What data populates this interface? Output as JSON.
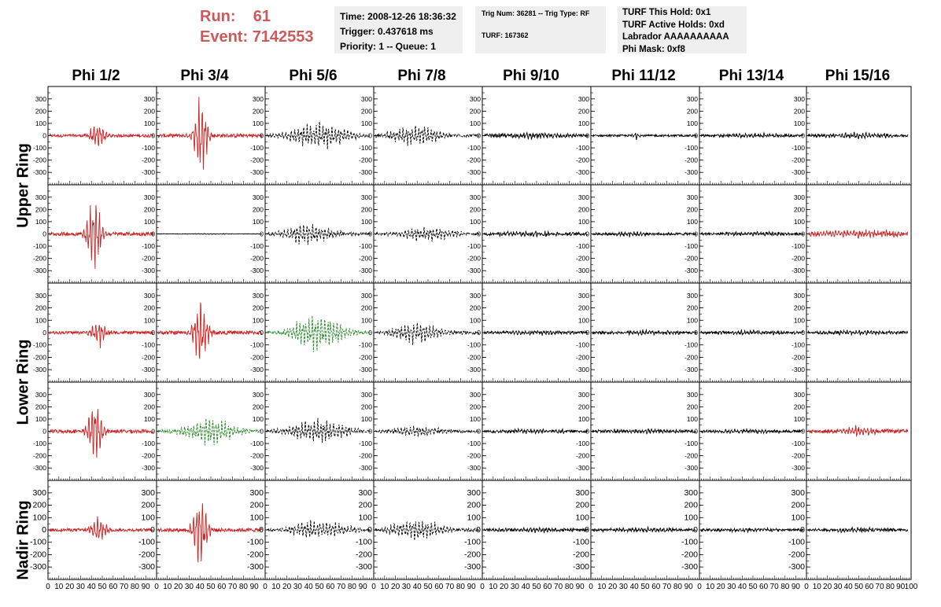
{
  "run_info": {
    "run_label": "Run:",
    "run_value": "61",
    "event_label": "Event:",
    "event_value": "7142553"
  },
  "info_box_time": {
    "time": "Time: 2008-12-26 18:36:32",
    "trigger": "Trigger: 0.437618 ms",
    "priority": "Priority: 1 -- Queue: 1"
  },
  "info_box_trig": {
    "trig": "Trig Num: 36281 -- Trig Type: RF",
    "turf": "TURF: 167362"
  },
  "info_box_turf": {
    "hold": "TURF This Hold: 0x1",
    "active": "TURF Active Holds: 0xd",
    "labrador": "Labrador AAAAAAAAAA",
    "phimask": "Phi Mask: 0xf8"
  },
  "colors": {
    "header": "#cc5a5a",
    "red": "#cc2222",
    "green": "#228822",
    "black": "#000000"
  },
  "chart_data": {
    "type": "line",
    "columns": [
      "Phi 1/2",
      "Phi 3/4",
      "Phi 5/6",
      "Phi 7/8",
      "Phi 9/10",
      "Phi 11/12",
      "Phi 13/14",
      "Phi 15/16"
    ],
    "rings": [
      "Upper Ring",
      "Lower Ring",
      "Nadir Ring"
    ],
    "rows": 5,
    "ylim": [
      -350,
      350
    ],
    "yticks": [
      300,
      200,
      100,
      0,
      -100,
      -200,
      -300
    ],
    "xlim": [
      0,
      100
    ],
    "xticks": [
      0,
      10,
      20,
      30,
      40,
      50,
      60,
      70,
      80,
      90,
      100
    ],
    "xticklabels_last": "100",
    "panels": [
      [
        {
          "color": "red",
          "style": "solid",
          "peak": 100,
          "center": 47,
          "width": 8,
          "noise": 12
        },
        {
          "color": "red",
          "style": "solid",
          "peak": 330,
          "center": 41,
          "width": 6,
          "noise": 15
        },
        {
          "color": "black",
          "style": "dashed",
          "peak": 90,
          "center": 50,
          "width": 30,
          "noise": 10
        },
        {
          "color": "black",
          "style": "dashed",
          "peak": 80,
          "center": 40,
          "width": 25,
          "noise": 12
        },
        {
          "color": "black",
          "style": "solid",
          "peak": 20,
          "center": 50,
          "width": 40,
          "noise": 12
        },
        {
          "color": "black",
          "style": "solid",
          "peak": 35,
          "center": 42,
          "width": 3,
          "noise": 8
        },
        {
          "color": "black",
          "style": "solid",
          "peak": 15,
          "center": 50,
          "width": 40,
          "noise": 10
        },
        {
          "color": "black",
          "style": "solid",
          "peak": 20,
          "center": 50,
          "width": 40,
          "noise": 10
        }
      ],
      [
        {
          "color": "red",
          "style": "solid",
          "peak": 310,
          "center": 43,
          "width": 7,
          "noise": 15
        },
        {
          "color": "black",
          "style": "solid",
          "peak": 3,
          "center": 50,
          "width": 40,
          "noise": 2
        },
        {
          "color": "black",
          "style": "dashed",
          "peak": 80,
          "center": 40,
          "width": 25,
          "noise": 12
        },
        {
          "color": "black",
          "style": "dashed",
          "peak": 50,
          "center": 50,
          "width": 30,
          "noise": 10
        },
        {
          "color": "black",
          "style": "solid",
          "peak": 20,
          "center": 45,
          "width": 30,
          "noise": 12
        },
        {
          "color": "black",
          "style": "solid",
          "peak": 20,
          "center": 40,
          "width": 20,
          "noise": 10
        },
        {
          "color": "black",
          "style": "solid",
          "peak": 12,
          "center": 50,
          "width": 40,
          "noise": 10
        },
        {
          "color": "red",
          "style": "solid",
          "peak": 30,
          "center": 50,
          "width": 40,
          "noise": 15
        }
      ],
      [
        {
          "color": "red",
          "style": "solid",
          "peak": 100,
          "center": 47,
          "width": 8,
          "noise": 12
        },
        {
          "color": "red",
          "style": "solid",
          "peak": 280,
          "center": 41,
          "width": 7,
          "noise": 15
        },
        {
          "color": "green",
          "style": "dashed",
          "peak": 140,
          "center": 50,
          "width": 25,
          "noise": 10
        },
        {
          "color": "black",
          "style": "dashed",
          "peak": 80,
          "center": 40,
          "width": 25,
          "noise": 12
        },
        {
          "color": "black",
          "style": "solid",
          "peak": 15,
          "center": 50,
          "width": 40,
          "noise": 10
        },
        {
          "color": "black",
          "style": "solid",
          "peak": 15,
          "center": 50,
          "width": 40,
          "noise": 10
        },
        {
          "color": "black",
          "style": "solid",
          "peak": 12,
          "center": 50,
          "width": 40,
          "noise": 10
        },
        {
          "color": "black",
          "style": "solid",
          "peak": 15,
          "center": 50,
          "width": 40,
          "noise": 10
        }
      ],
      [
        {
          "color": "red",
          "style": "solid",
          "peak": 260,
          "center": 44,
          "width": 7,
          "noise": 15
        },
        {
          "color": "green",
          "style": "dashed",
          "peak": 100,
          "center": 50,
          "width": 25,
          "noise": 12
        },
        {
          "color": "black",
          "style": "dashed",
          "peak": 90,
          "center": 50,
          "width": 30,
          "noise": 10
        },
        {
          "color": "black",
          "style": "dashed",
          "peak": 40,
          "center": 40,
          "width": 25,
          "noise": 12
        },
        {
          "color": "black",
          "style": "solid",
          "peak": 15,
          "center": 50,
          "width": 40,
          "noise": 10
        },
        {
          "color": "black",
          "style": "solid",
          "peak": 15,
          "center": 50,
          "width": 40,
          "noise": 10
        },
        {
          "color": "black",
          "style": "solid",
          "peak": 12,
          "center": 50,
          "width": 40,
          "noise": 10
        },
        {
          "color": "red",
          "style": "solid",
          "peak": 40,
          "center": 50,
          "width": 20,
          "noise": 15
        }
      ],
      [
        {
          "color": "red",
          "style": "solid",
          "peak": 110,
          "center": 47,
          "width": 8,
          "noise": 12
        },
        {
          "color": "red",
          "style": "solid",
          "peak": 280,
          "center": 41,
          "width": 7,
          "noise": 15
        },
        {
          "color": "black",
          "style": "dashed",
          "peak": 70,
          "center": 50,
          "width": 30,
          "noise": 10
        },
        {
          "color": "black",
          "style": "dashed",
          "peak": 80,
          "center": 40,
          "width": 25,
          "noise": 12
        },
        {
          "color": "black",
          "style": "solid",
          "peak": 15,
          "center": 50,
          "width": 40,
          "noise": 10
        },
        {
          "color": "black",
          "style": "solid",
          "peak": 15,
          "center": 50,
          "width": 40,
          "noise": 10
        },
        {
          "color": "black",
          "style": "solid",
          "peak": 12,
          "center": 50,
          "width": 40,
          "noise": 10
        },
        {
          "color": "black",
          "style": "solid",
          "peak": 15,
          "center": 50,
          "width": 40,
          "noise": 10
        }
      ]
    ]
  }
}
